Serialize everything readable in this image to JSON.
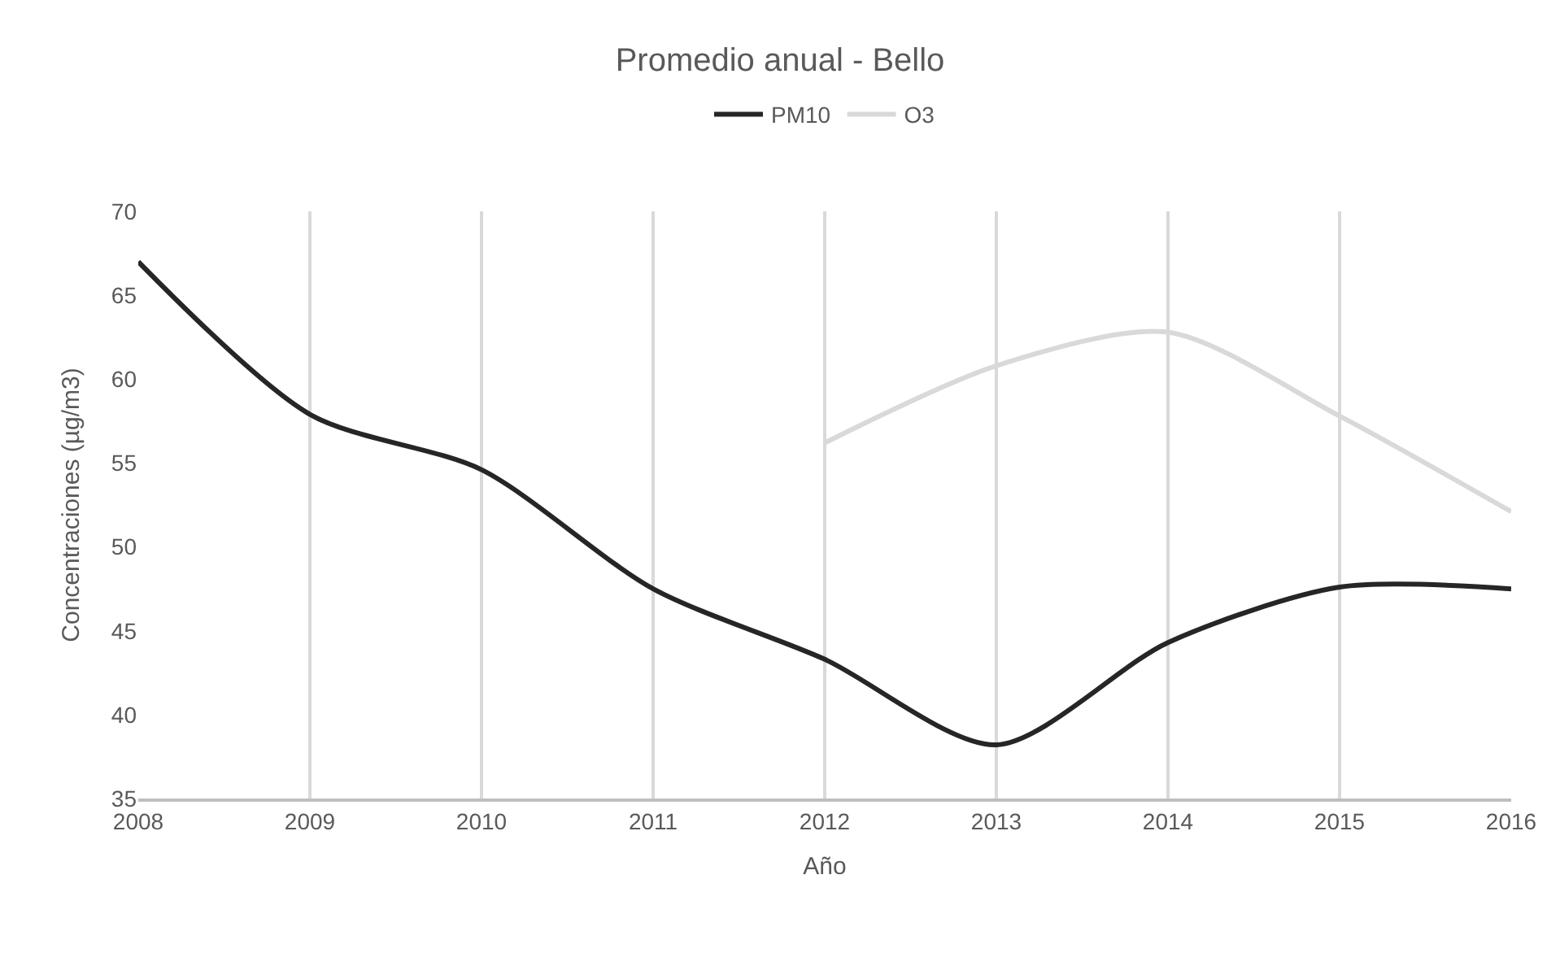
{
  "chart_data": {
    "type": "line",
    "title": "Promedio anual - Bello",
    "xlabel": "Año",
    "ylabel": "Concentraciones (µg/m3)",
    "x": [
      2008,
      2009,
      2010,
      2011,
      2012,
      2013,
      2014,
      2015,
      2016
    ],
    "series": [
      {
        "name": "PM10",
        "color": "#262626",
        "values": [
          67.0,
          57.9,
          54.6,
          47.5,
          43.3,
          38.2,
          44.3,
          47.6,
          47.5
        ]
      },
      {
        "name": "O3",
        "color": "#d9d9d9",
        "values": [
          null,
          null,
          null,
          null,
          56.2,
          60.8,
          62.8,
          57.8,
          52.1
        ]
      }
    ],
    "xlim": [
      2008,
      2016
    ],
    "xticks": [
      2008,
      2009,
      2010,
      2011,
      2012,
      2013,
      2014,
      2015,
      2016
    ],
    "ylim": [
      35,
      70
    ],
    "yticks": [
      35,
      40,
      45,
      50,
      55,
      60,
      65,
      70
    ],
    "grid": "x",
    "legend": "top",
    "marker": "none",
    "line_style": "solid"
  }
}
